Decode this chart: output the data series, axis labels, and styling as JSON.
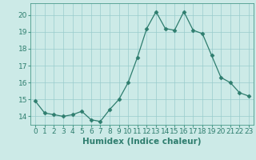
{
  "x": [
    0,
    1,
    2,
    3,
    4,
    5,
    6,
    7,
    8,
    9,
    10,
    11,
    12,
    13,
    14,
    15,
    16,
    17,
    18,
    19,
    20,
    21,
    22,
    23
  ],
  "y": [
    14.9,
    14.2,
    14.1,
    14.0,
    14.1,
    14.3,
    13.8,
    13.7,
    14.4,
    15.0,
    16.0,
    17.5,
    19.2,
    20.2,
    19.2,
    19.1,
    20.2,
    19.1,
    18.9,
    17.6,
    16.3,
    16.0,
    15.4,
    15.2
  ],
  "line_color": "#2e7d6e",
  "marker": "D",
  "marker_size": 2.5,
  "bg_color": "#cceae7",
  "grid_color": "#99cccc",
  "xlabel": "Humidex (Indice chaleur)",
  "ylabel": "",
  "ylim": [
    13.5,
    20.7
  ],
  "xlim": [
    -0.5,
    23.5
  ],
  "yticks": [
    14,
    15,
    16,
    17,
    18,
    19,
    20
  ],
  "xticks": [
    0,
    1,
    2,
    3,
    4,
    5,
    6,
    7,
    8,
    9,
    10,
    11,
    12,
    13,
    14,
    15,
    16,
    17,
    18,
    19,
    20,
    21,
    22,
    23
  ],
  "tick_fontsize": 6.5,
  "xlabel_fontsize": 7.5,
  "tick_color": "#2e7d6e",
  "spine_color": "#4a9a8a"
}
